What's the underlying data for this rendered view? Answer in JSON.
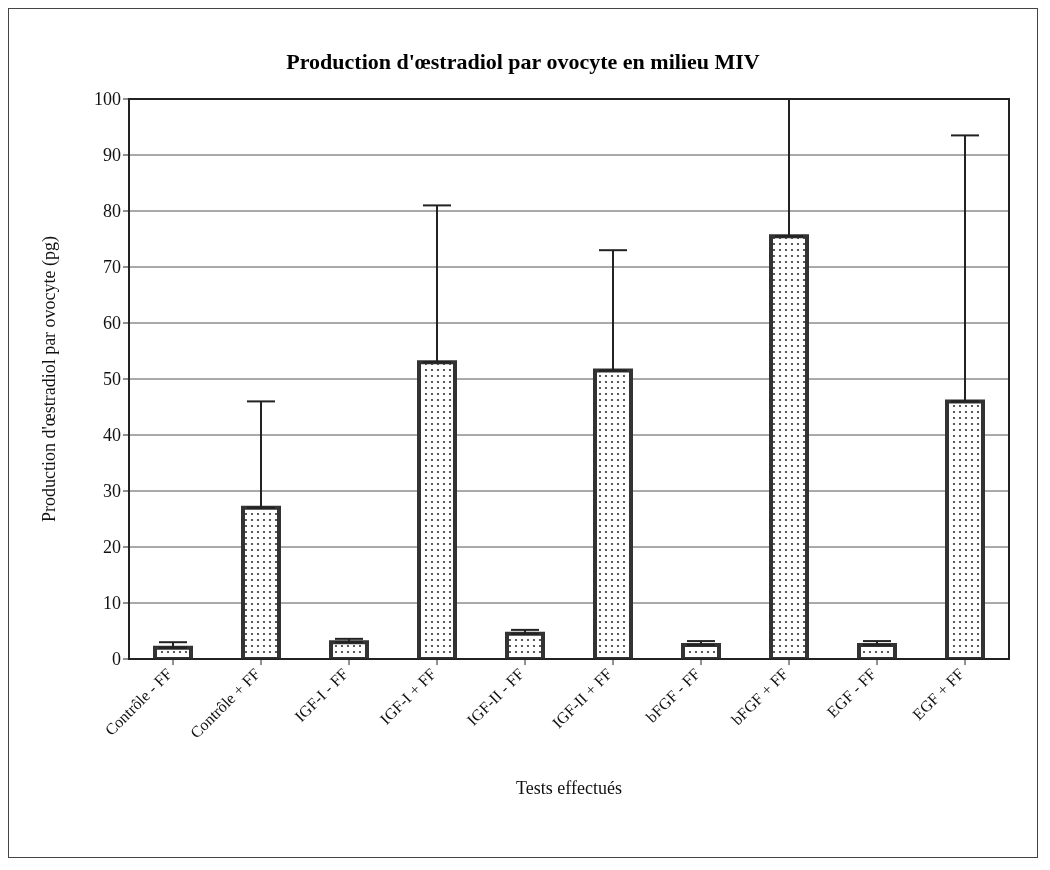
{
  "chart_data": {
    "type": "bar",
    "title": "Production d'œstradiol par ovocyte en milieu MIV",
    "xlabel": "Tests effectués",
    "ylabel": "Production d'œstradiol par ovocyte (pg)",
    "categories": [
      "Contrôle - FF",
      "Contrôle + FF",
      "IGF-I - FF",
      "IGF-I + FF",
      "IGF-II - FF",
      "IGF-II + FF",
      "bFGF - FF",
      "bFGF + FF",
      "EGF - FF",
      "EGF + FF"
    ],
    "values": [
      2,
      27,
      3,
      53,
      4.5,
      51.5,
      2.5,
      75.5,
      2.5,
      46
    ],
    "errors": [
      [
        2,
        3
      ],
      [
        27,
        46
      ],
      [
        3,
        3.6
      ],
      [
        53,
        81
      ],
      [
        4.5,
        5.2
      ],
      [
        51.5,
        73
      ],
      [
        2.5,
        3.2
      ],
      [
        75.5,
        100
      ],
      [
        2.5,
        3.2
      ],
      [
        46,
        93.5
      ]
    ],
    "color": "#333333",
    "ylim": [
      0,
      100
    ],
    "yticks": [
      0,
      10,
      20,
      30,
      40,
      50,
      60,
      70,
      80,
      90,
      100
    ],
    "grid": "y",
    "legend": false
  }
}
